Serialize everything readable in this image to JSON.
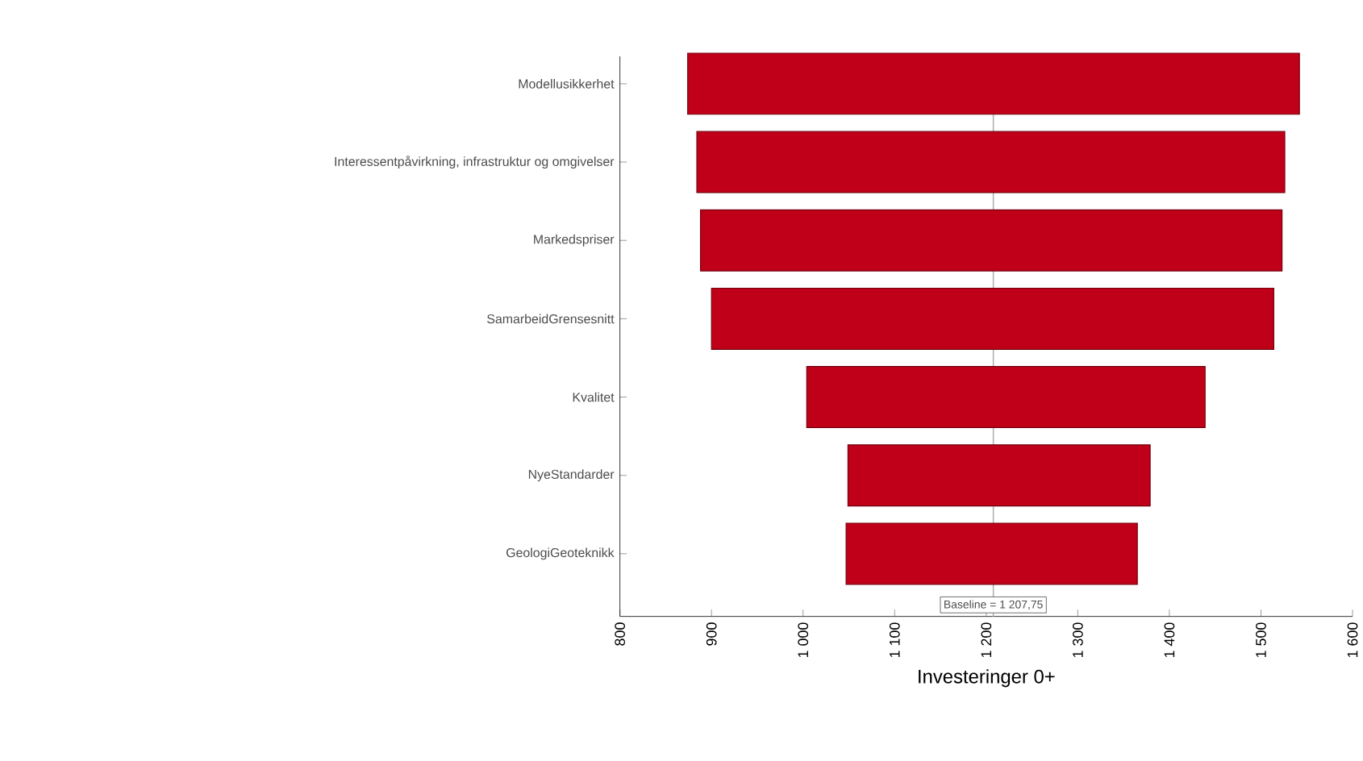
{
  "chart_data": {
    "type": "bar",
    "orientation": "horizontal",
    "xlabel": "Investeringer 0+",
    "categories": [
      "Modellusikkerhet",
      "Interessentpåvirkning, infrastruktur og omgivelser",
      "Markedspriser",
      "SamarbeidGrensesnitt",
      "Kvalitet",
      "NyeStandarder",
      "GeologiGeoteknikk"
    ],
    "base": [
      874,
      884,
      888,
      900,
      1004,
      1049,
      1047
    ],
    "values": [
      668,
      642,
      635,
      614,
      435,
      330,
      318
    ],
    "color": "#c00018",
    "xlim": [
      800,
      1600
    ],
    "xticks": [
      {
        "value": 800,
        "label": "800"
      },
      {
        "value": 900,
        "label": "900"
      },
      {
        "value": 1000,
        "label": "1 000"
      },
      {
        "value": 1100,
        "label": "1 100"
      },
      {
        "value": 1200,
        "label": "1 200"
      },
      {
        "value": 1300,
        "label": "1 300"
      },
      {
        "value": 1400,
        "label": "1 400"
      },
      {
        "value": 1500,
        "label": "1 500"
      },
      {
        "value": 1600,
        "label": "1 600"
      }
    ],
    "ref_lines": [
      {
        "axis": "x",
        "value": 1207.75,
        "label": "Baseline = 1 207,75",
        "color": "#b0b0b0"
      }
    ]
  }
}
